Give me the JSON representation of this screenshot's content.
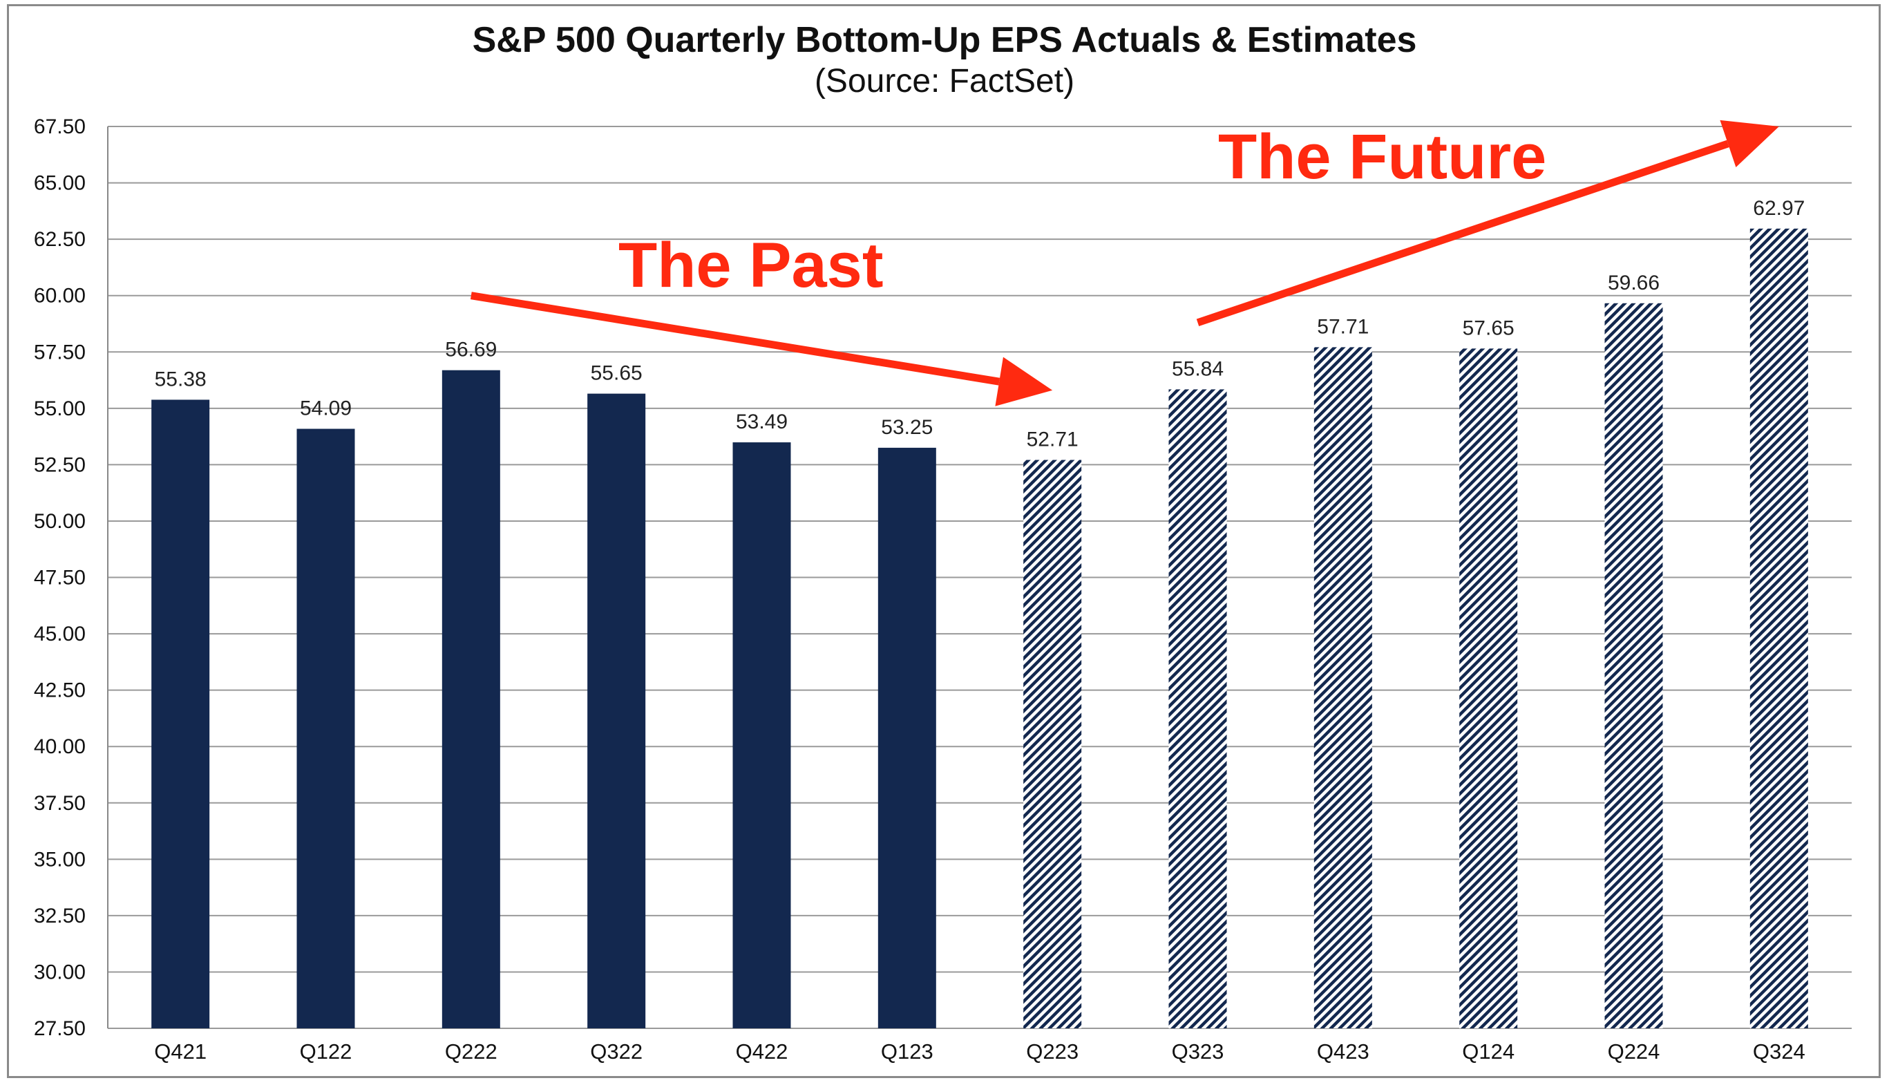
{
  "chart_data": {
    "type": "bar",
    "title": "S&P 500 Quarterly Bottom-Up EPS Actuals & Estimates",
    "subtitle": "(Source: FactSet)",
    "xlabel": "",
    "ylabel": "",
    "ylim": [
      27.5,
      67.5
    ],
    "ytick_step": 2.5,
    "yticks": [
      "27.50",
      "30.00",
      "32.50",
      "35.00",
      "37.50",
      "40.00",
      "42.50",
      "45.00",
      "47.50",
      "50.00",
      "52.50",
      "55.00",
      "57.50",
      "60.00",
      "62.50",
      "65.00",
      "67.50"
    ],
    "grid": true,
    "categories": [
      "Q421",
      "Q122",
      "Q222",
      "Q322",
      "Q422",
      "Q123",
      "Q223",
      "Q323",
      "Q423",
      "Q124",
      "Q224",
      "Q324"
    ],
    "values": [
      55.38,
      54.09,
      56.69,
      55.65,
      53.49,
      53.25,
      52.71,
      55.84,
      57.71,
      57.65,
      59.66,
      62.97
    ],
    "data_labels": [
      "55.38",
      "54.09",
      "56.69",
      "55.65",
      "53.49",
      "53.25",
      "52.71",
      "55.84",
      "57.71",
      "57.65",
      "59.66",
      "62.97"
    ],
    "bar_style": [
      "solid",
      "solid",
      "solid",
      "solid",
      "solid",
      "solid",
      "hatched",
      "hatched",
      "hatched",
      "hatched",
      "hatched",
      "hatched"
    ],
    "colors": {
      "bar": "#13284f",
      "grid": "#9a9a9a",
      "annotation": "#ff2a10"
    },
    "annotations": [
      {
        "text": "The Past",
        "arrow": {
          "from": [
            "Q222",
            60.0
          ],
          "to": [
            "Q223",
            55.8
          ]
        }
      },
      {
        "text": "The Future",
        "arrow": {
          "from": [
            "Q323",
            58.8
          ],
          "to": [
            "Q324",
            67.5
          ]
        }
      }
    ]
  }
}
